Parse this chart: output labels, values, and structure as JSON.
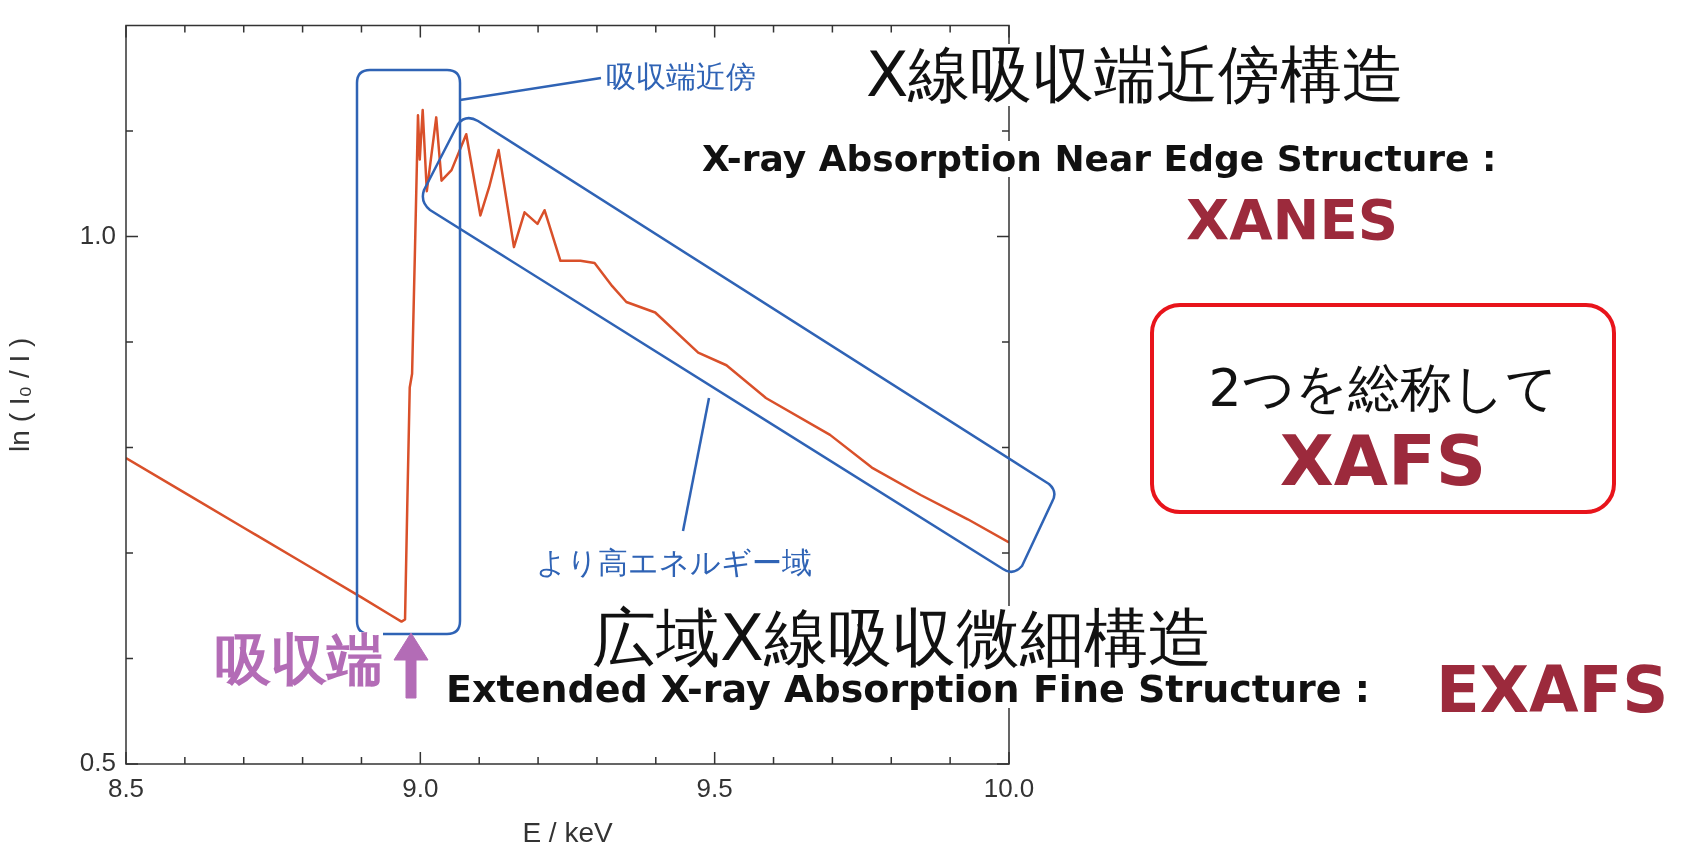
{
  "chart_data": {
    "type": "line",
    "xlabel": "E / keV",
    "ylabel": "ln ( I₀ / I )",
    "x": [
      8.5,
      8.6,
      8.7,
      8.8,
      8.9,
      8.95,
      8.968,
      8.974,
      8.978,
      8.982,
      8.986,
      8.991,
      8.996,
      8.999,
      9.004,
      9.011,
      9.027,
      9.036,
      9.053,
      9.078,
      9.102,
      9.117,
      9.133,
      9.159,
      9.177,
      9.199,
      9.211,
      9.238,
      9.272,
      9.296,
      9.326,
      9.35,
      9.399,
      9.472,
      9.52,
      9.587,
      9.696,
      9.767,
      9.85,
      9.93,
      10.0
    ],
    "series": [
      {
        "color": "#d9502a",
        "values": [
          0.79,
          0.757,
          0.724,
          0.691,
          0.658,
          0.641,
          0.635,
          0.637,
          0.75,
          0.857,
          0.87,
          0.99,
          1.115,
          1.073,
          1.12,
          1.043,
          1.113,
          1.053,
          1.063,
          1.097,
          1.02,
          1.047,
          1.082,
          0.99,
          1.023,
          1.012,
          1.025,
          0.977,
          0.977,
          0.975,
          0.953,
          0.938,
          0.928,
          0.89,
          0.878,
          0.847,
          0.812,
          0.781,
          0.755,
          0.732,
          0.71
        ]
      }
    ],
    "xlim": [
      8.5,
      10.0
    ],
    "xticks": [
      8.5,
      {
        "value": 8.6,
        "label": null
      },
      {
        "value": 8.7,
        "label": null
      },
      {
        "value": 8.8,
        "label": null
      },
      {
        "value": 8.9,
        "label": null
      },
      {
        "value": 9.0,
        "label": "9.0"
      },
      {
        "value": 9.1,
        "label": null
      },
      {
        "value": 9.2,
        "label": null
      },
      {
        "value": 9.3,
        "label": null
      },
      {
        "value": 9.4,
        "label": null
      },
      9.5,
      {
        "value": 9.6,
        "label": null
      },
      {
        "value": 9.7,
        "label": null
      },
      {
        "value": 9.8,
        "label": null
      },
      {
        "value": 9.9,
        "label": null
      },
      {
        "value": 10.0,
        "label": "10.0"
      }
    ],
    "ylim": [
      0.5,
      1.2
    ],
    "yticks": [
      0.5,
      {
        "value": 0.6,
        "label": null
      },
      {
        "value": 0.7,
        "label": null
      },
      {
        "value": 0.8,
        "label": null
      },
      {
        "value": 0.9,
        "label": null
      },
      {
        "value": 1.0,
        "label": "1.0"
      },
      {
        "value": 1.1,
        "label": null
      }
    ],
    "annotations": [
      "吸収端近傍",
      "X線吸収端近傍構造",
      "X-ray Absorption Near Edge Structure :",
      "XANES",
      "2つを総称して",
      "XAFS",
      "より高エネルギー域",
      "広域X線吸収微細構造",
      "Extended X-ray Absorption Fine Structure :",
      "EXAFS",
      "吸収端"
    ]
  }
}
